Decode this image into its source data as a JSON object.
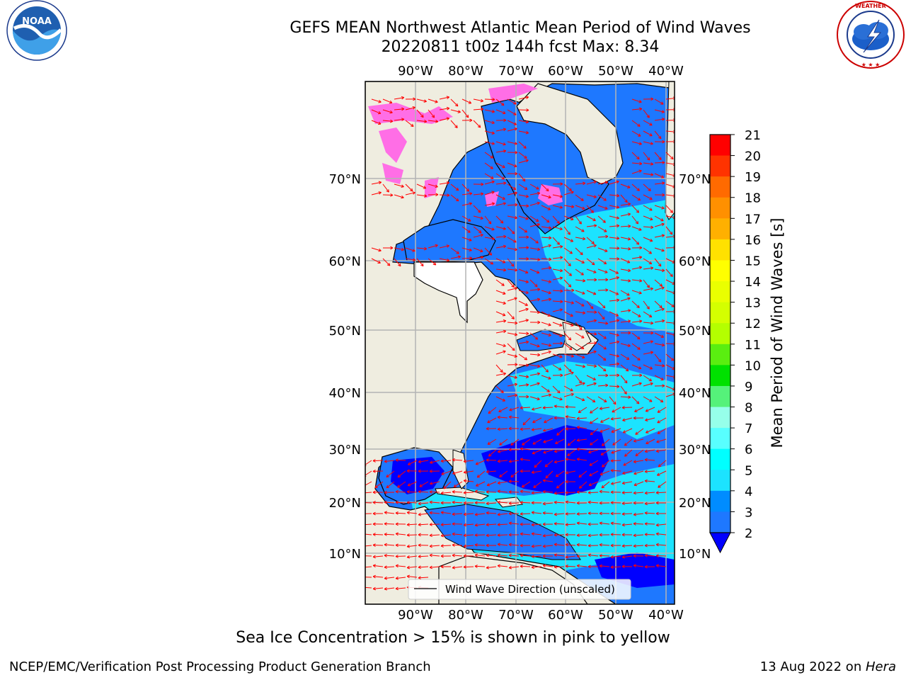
{
  "header": {
    "title_line1": "GEFS MEAN Northwest Atlantic Mean Period of Wind Waves",
    "title_line2": "20220811 t00z 144h fcst   Max: 8.34"
  },
  "logos": {
    "left": {
      "name": "noaa-logo",
      "text": "NOAA",
      "ring_text": "NATIONAL OCEANIC AND ATMOSPHERIC ADMINISTRATION · U.S. DEPARTMENT OF COMMERCE"
    },
    "right": {
      "name": "nws-logo",
      "ring_text": "NATIONAL WEATHER SERVICE"
    }
  },
  "map": {
    "lon_ticks": [
      "90°W",
      "80°W",
      "70°W",
      "60°W",
      "50°W",
      "40°W"
    ],
    "lat_ticks": [
      "70°N",
      "60°N",
      "50°N",
      "40°N",
      "30°N",
      "20°N",
      "10°N"
    ],
    "legend_label": "Wind Wave Direction (unscaled)",
    "colors": {
      "ocean": "#1e78ff",
      "land": "#efede0",
      "sea_ice": "#ff6ee6",
      "arrows": "#ff0000",
      "grid": "#b4b4b4"
    }
  },
  "colorbar": {
    "label": "Mean Period of Wind Waves [s]",
    "ticks": [
      "21",
      "20",
      "19",
      "18",
      "17",
      "16",
      "15",
      "14",
      "13",
      "12",
      "11",
      "10",
      "9",
      "8",
      "7",
      "6",
      "5",
      "4",
      "3",
      "2"
    ],
    "colors": [
      "#ff0000",
      "#ff3300",
      "#ff6a00",
      "#ff9000",
      "#ffb000",
      "#ffe100",
      "#ffff00",
      "#eaff00",
      "#d4ff00",
      "#b4ff00",
      "#5aee10",
      "#00e100",
      "#55f27a",
      "#96ffea",
      "#58ffff",
      "#00ffff",
      "#1ce3ff",
      "#008cff",
      "#1e78ff"
    ],
    "under_color": "#0000ff"
  },
  "caption": "Sea Ice Concentration > 15% is shown in pink to yellow",
  "footer": {
    "left": "NCEP/EMC/Verification Post Processing Product Generation Branch",
    "right_date": "13 Aug 2022 on ",
    "right_host": "Hera"
  }
}
